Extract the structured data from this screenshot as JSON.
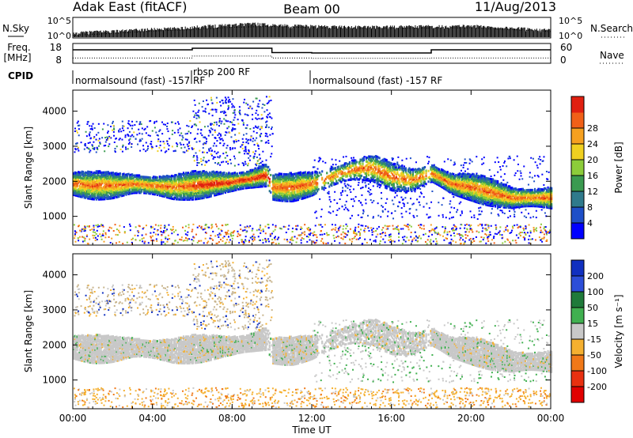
{
  "header": {
    "station": "Adak East (fitACF)",
    "beam": "Beam 00",
    "date": "11/Aug/2013"
  },
  "noise_panel": {
    "left_label": "N.Sky",
    "right_label": "N.Search",
    "left_ticks": [
      "10^5",
      "10^0"
    ],
    "right_ticks": [
      "10^5",
      "10^0"
    ]
  },
  "freq_panel": {
    "left_label_line1": "Freq.",
    "left_label_line2": "[MHz]",
    "right_label": "Nave",
    "left_ticks": [
      "18",
      "8"
    ],
    "right_ticks": [
      "60",
      "0"
    ]
  },
  "cpid": {
    "label": "CPID",
    "segments": [
      {
        "text": "normalsound (fast) -157 RF",
        "start_hour": 0
      },
      {
        "text": "rbsp 200 RF",
        "start_hour": 6
      },
      {
        "text": "normalsound (fast) -157 RF",
        "start_hour": 12
      }
    ]
  },
  "x_axis": {
    "label": "Time UT",
    "ticks": [
      "00:00",
      "04:00",
      "08:00",
      "12:00",
      "16:00",
      "20:00",
      "00:00"
    ],
    "range_hours": [
      0,
      24
    ]
  },
  "power_colorbar": {
    "label": "Power [dB]",
    "ticks": [
      "4",
      "8",
      "12",
      "16",
      "20",
      "24",
      "28"
    ],
    "colors": [
      "#0000ff",
      "#1e4fc8",
      "#2f7a8c",
      "#3a9a50",
      "#8ccc3a",
      "#f0d020",
      "#f5a020",
      "#f06018",
      "#e02010"
    ]
  },
  "velocity_colorbar": {
    "label": "Velocity [m s⁻¹]",
    "ticks": [
      "200",
      "100",
      "50",
      "15",
      "-15",
      "-50",
      "-100",
      "-200"
    ],
    "colors": [
      "#1030c0",
      "#2c4ed8",
      "#1f7a3a",
      "#40b050",
      "#c8c8c8",
      "#f5b030",
      "#f07818",
      "#e83010",
      "#e00000"
    ]
  },
  "chart_data": [
    {
      "type": "line",
      "title": "",
      "xlabel": "",
      "ylabel": "N.Sky",
      "y_scale": "log",
      "ylim": [
        1,
        100000
      ],
      "series": [
        {
          "name": "N.Sky",
          "x": [
            0,
            1,
            2,
            3,
            4,
            5,
            6,
            7,
            8,
            9,
            10,
            11,
            12,
            13,
            14,
            15,
            16,
            17,
            18,
            19,
            20,
            21,
            22,
            23,
            24
          ],
          "values": [
            5,
            20,
            30,
            50,
            100,
            150,
            300,
            800,
            1500,
            3000,
            1200,
            800,
            600,
            500,
            400,
            400,
            400,
            500,
            600,
            500,
            800,
            300,
            200,
            100,
            50
          ]
        },
        {
          "name": "N.Search",
          "x": [
            0,
            2,
            4,
            6,
            8,
            10,
            12,
            14,
            16,
            18,
            20,
            22,
            24
          ],
          "values": [
            3,
            10,
            40,
            100,
            400,
            700,
            300,
            200,
            200,
            250,
            300,
            100,
            30
          ]
        }
      ]
    },
    {
      "type": "line",
      "title": "",
      "xlabel": "",
      "ylabel": "Freq. [MHz]",
      "ylim": [
        8,
        18
      ],
      "series": [
        {
          "name": "Freq.",
          "x": [
            0,
            6,
            6,
            10,
            10,
            12,
            12,
            18,
            18,
            24
          ],
          "values": [
            14.8,
            14.8,
            15.6,
            15.6,
            13.4,
            13.4,
            13.2,
            13.2,
            14.8,
            14.8
          ]
        },
        {
          "name": "Nave",
          "x": [
            0,
            6,
            6,
            10,
            10,
            12,
            12,
            18,
            18,
            24
          ],
          "values": [
            16,
            16,
            22,
            22,
            16,
            16,
            15,
            15,
            16,
            16
          ]
        }
      ]
    },
    {
      "type": "scatter",
      "title": "",
      "xlabel": "",
      "ylabel": "Slant Range [km]",
      "ylim": [
        180,
        4600
      ],
      "xlim": [
        0,
        24
      ],
      "colorbar": "Power [dB]",
      "series": [
        {
          "name": "",
          "x": [
            0,
            1,
            2,
            3,
            4,
            5,
            6,
            7,
            8,
            9,
            9.7,
            10,
            11,
            11.5,
            12,
            13,
            14,
            15,
            16,
            17,
            18,
            19,
            20,
            21,
            22,
            23,
            24
          ],
          "values": [
            1900,
            1850,
            1850,
            1900,
            1850,
            1800,
            1850,
            1900,
            1950,
            2050,
            2150,
            1800,
            1800,
            1850,
            1900,
            2100,
            2300,
            2350,
            2100,
            2000,
            2200,
            1900,
            1800,
            1650,
            1500,
            1500,
            1500
          ]
        }
      ]
    },
    {
      "type": "scatter",
      "title": "",
      "xlabel": "Time UT",
      "ylabel": "Slant Range [km]",
      "ylim": [
        180,
        4600
      ],
      "xlim": [
        0,
        24
      ],
      "colorbar": "Velocity [m s⁻¹]",
      "series": [
        {
          "name": "",
          "x": [
            0,
            1,
            2,
            3,
            4,
            5,
            6,
            7,
            8,
            9,
            9.7,
            10,
            11,
            11.5,
            12,
            13,
            14,
            15,
            16,
            17,
            18,
            19,
            20,
            21,
            22,
            23,
            24
          ],
          "values": [
            1900,
            1850,
            1850,
            1900,
            1850,
            1800,
            1850,
            1900,
            1950,
            2050,
            2150,
            1800,
            1800,
            1850,
            1900,
            2100,
            2300,
            2350,
            2100,
            2000,
            2200,
            1900,
            1800,
            1650,
            1500,
            1500,
            1500
          ]
        }
      ]
    }
  ]
}
